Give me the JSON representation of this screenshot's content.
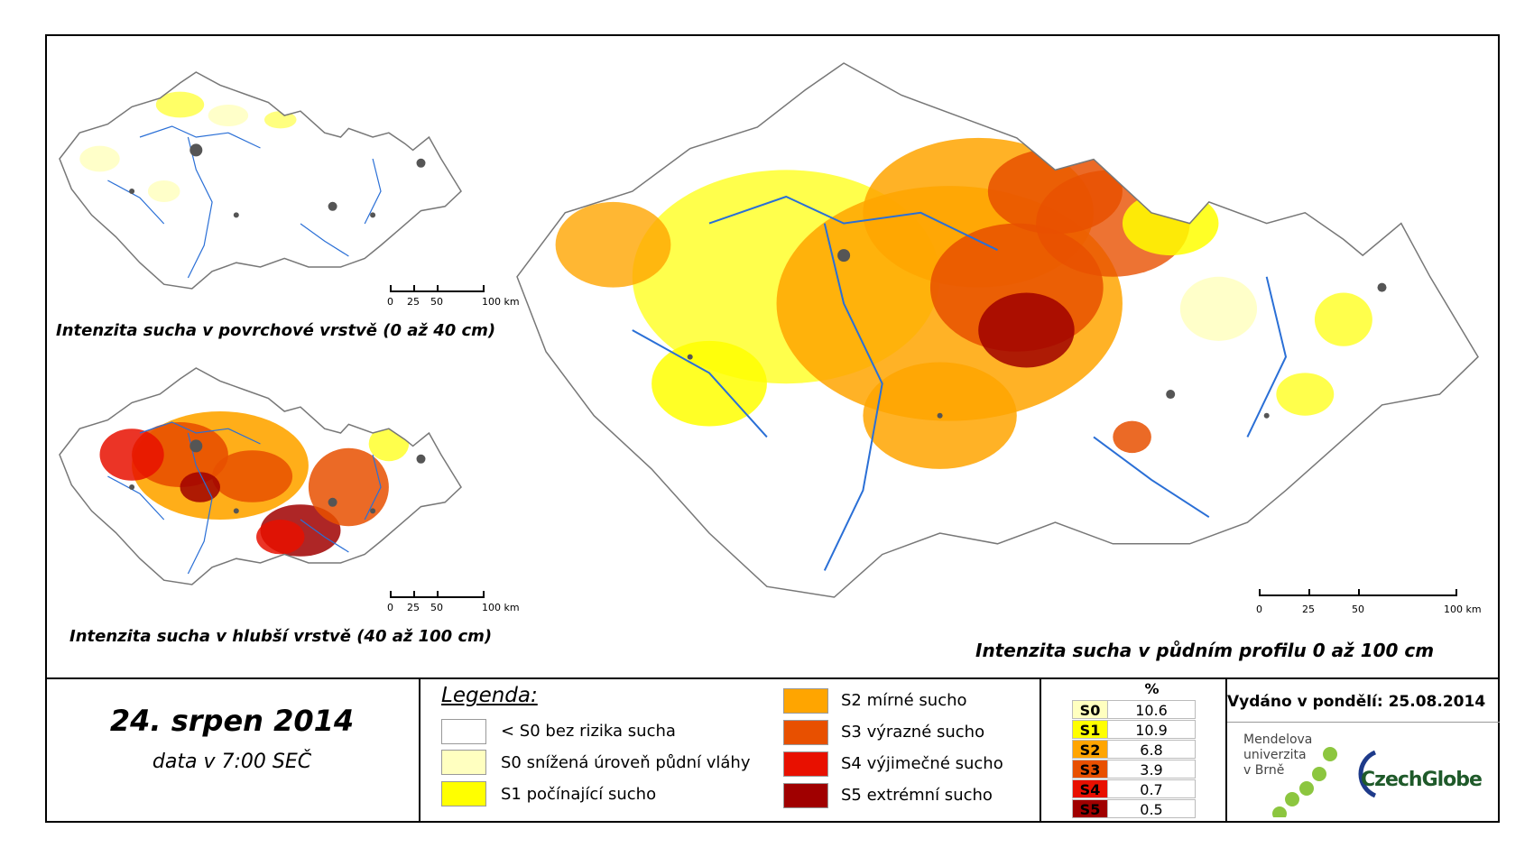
{
  "maps": {
    "top_left_title": "Intenzita sucha v povrchové vrstvě (0 až 40 cm)",
    "bottom_left_title": "Intenzita sucha v hlubší vrstvě (40 až 100 cm)",
    "main_title": "Intenzita sucha v půdním profilu 0 až 100 cm",
    "scale_labels": [
      "0",
      "25",
      "50",
      "100 km"
    ]
  },
  "date": {
    "title": "24. srpen 2014",
    "subtitle": "data v 7:00 SEČ"
  },
  "legend": {
    "title": "Legenda:",
    "items": [
      {
        "code": "<S0",
        "label": "< S0 bez rizika sucha",
        "color": "#ffffff"
      },
      {
        "code": "S0",
        "label": "S0 snížená úroveň půdní vláhy",
        "color": "#ffffc0"
      },
      {
        "code": "S1",
        "label": "S1 počínající sucho",
        "color": "#ffff00"
      },
      {
        "code": "S2",
        "label": "S2 mírné sucho",
        "color": "#ffa500"
      },
      {
        "code": "S3",
        "label": "S3 výrazné sucho",
        "color": "#e85000"
      },
      {
        "code": "S4",
        "label": "S4 výjimečné sucho",
        "color": "#e81000"
      },
      {
        "code": "S5",
        "label": "S5 extrémní sucho",
        "color": "#a00000"
      }
    ]
  },
  "stats": {
    "header": "%",
    "rows": [
      {
        "code": "S0",
        "value": "10.6",
        "color": "#ffffc0"
      },
      {
        "code": "S1",
        "value": "10.9",
        "color": "#ffff00"
      },
      {
        "code": "S2",
        "value": "6.8",
        "color": "#ffa500"
      },
      {
        "code": "S3",
        "value": "3.9",
        "color": "#e85000"
      },
      {
        "code": "S4",
        "value": "0.7",
        "color": "#e81000"
      },
      {
        "code": "S5",
        "value": "0.5",
        "color": "#a00000"
      }
    ]
  },
  "issued": "Vydáno v pondělí: 25.08.2014",
  "logos": {
    "mendel": [
      "Mendelova",
      "univerzita",
      "v Brně"
    ],
    "czechglobe": "CzechGlobe"
  }
}
